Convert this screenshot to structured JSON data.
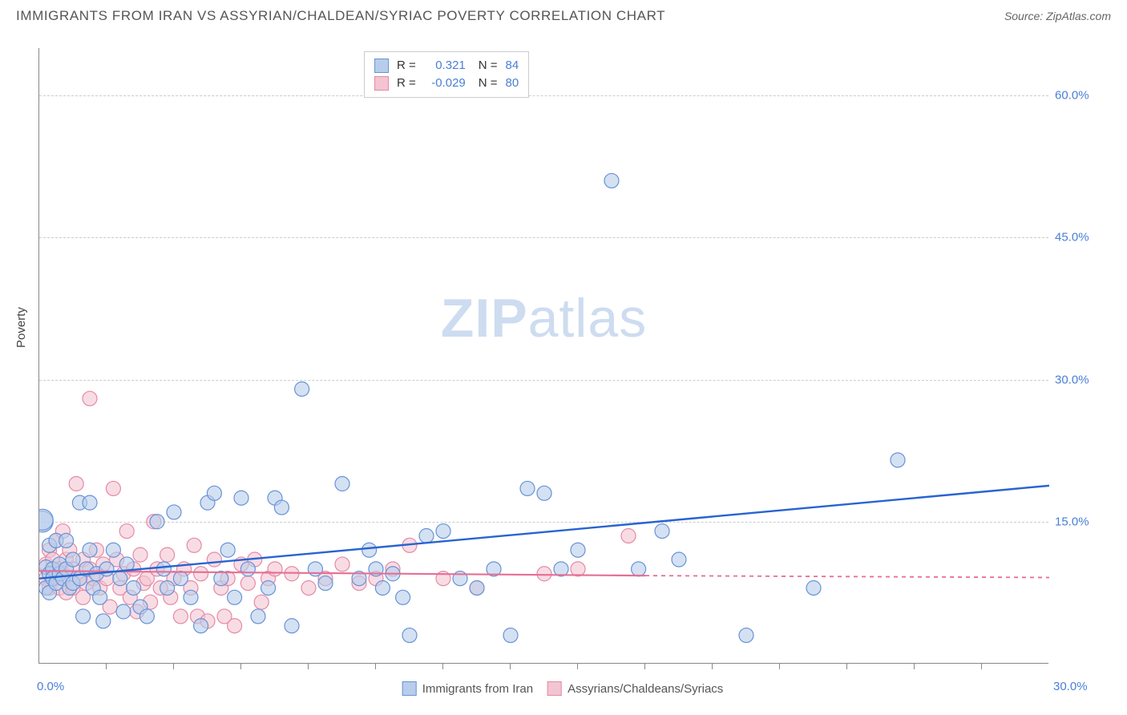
{
  "title": "IMMIGRANTS FROM IRAN VS ASSYRIAN/CHALDEAN/SYRIAC POVERTY CORRELATION CHART",
  "source": "Source: ZipAtlas.com",
  "watermark_zip": "ZIP",
  "watermark_atlas": "atlas",
  "ylabel": "Poverty",
  "chart": {
    "type": "scatter",
    "xlim": [
      0,
      30
    ],
    "ylim": [
      0,
      65
    ],
    "ytick_values": [
      15,
      30,
      45,
      60
    ],
    "ytick_labels": [
      "15.0%",
      "30.0%",
      "45.0%",
      "60.0%"
    ],
    "xtick_positions": [
      2,
      4,
      6,
      8,
      10,
      12,
      14,
      16,
      18,
      20,
      22,
      24,
      26,
      28
    ],
    "xlabel_start": "0.0%",
    "xlabel_end": "30.0%",
    "grid_color": "#cccccc",
    "background_color": "#ffffff",
    "marker_radius": 9,
    "marker_radius_large": 13,
    "series": [
      {
        "name": "Immigrants from Iran",
        "color_fill": "#b8cdeb",
        "color_stroke": "#6793d6",
        "fill_opacity": 0.6,
        "R": "0.321",
        "N": "84",
        "trend": {
          "x1": 0,
          "y1": 9.0,
          "x2": 30,
          "y2": 18.8,
          "color": "#2864d0",
          "dash_after_x": 30
        },
        "points": [
          [
            0.1,
            15.0
          ],
          [
            0.1,
            15.2
          ],
          [
            0.2,
            10.2
          ],
          [
            0.2,
            8.0
          ],
          [
            0.3,
            12.5
          ],
          [
            0.3,
            9.5
          ],
          [
            0.3,
            7.5
          ],
          [
            0.4,
            10.0
          ],
          [
            0.4,
            9.0
          ],
          [
            0.5,
            13.0
          ],
          [
            0.5,
            8.5
          ],
          [
            0.6,
            9.5
          ],
          [
            0.6,
            10.5
          ],
          [
            0.7,
            9.0
          ],
          [
            0.8,
            13.0
          ],
          [
            0.8,
            10.0
          ],
          [
            0.9,
            8.0
          ],
          [
            1.0,
            11.0
          ],
          [
            1.0,
            8.5
          ],
          [
            1.2,
            17.0
          ],
          [
            1.2,
            9.0
          ],
          [
            1.3,
            5.0
          ],
          [
            1.4,
            10.0
          ],
          [
            1.5,
            17.0
          ],
          [
            1.5,
            12.0
          ],
          [
            1.6,
            8.0
          ],
          [
            1.7,
            9.5
          ],
          [
            1.8,
            7.0
          ],
          [
            1.9,
            4.5
          ],
          [
            2.0,
            10.0
          ],
          [
            2.2,
            12.0
          ],
          [
            2.4,
            9.0
          ],
          [
            2.5,
            5.5
          ],
          [
            2.6,
            10.5
          ],
          [
            2.8,
            8.0
          ],
          [
            3.0,
            6.0
          ],
          [
            3.2,
            5.0
          ],
          [
            3.5,
            15.0
          ],
          [
            3.7,
            10.0
          ],
          [
            3.8,
            8.0
          ],
          [
            4.0,
            16.0
          ],
          [
            4.2,
            9.0
          ],
          [
            4.5,
            7.0
          ],
          [
            4.8,
            4.0
          ],
          [
            5.0,
            17.0
          ],
          [
            5.2,
            18.0
          ],
          [
            5.4,
            9.0
          ],
          [
            5.6,
            12.0
          ],
          [
            5.8,
            7.0
          ],
          [
            6.0,
            17.5
          ],
          [
            6.2,
            10.0
          ],
          [
            6.5,
            5.0
          ],
          [
            6.8,
            8.0
          ],
          [
            7.0,
            17.5
          ],
          [
            7.2,
            16.5
          ],
          [
            7.5,
            4.0
          ],
          [
            7.8,
            29.0
          ],
          [
            8.2,
            10.0
          ],
          [
            8.5,
            8.5
          ],
          [
            9.0,
            19.0
          ],
          [
            9.5,
            9.0
          ],
          [
            9.8,
            12.0
          ],
          [
            10.0,
            10.0
          ],
          [
            10.2,
            8.0
          ],
          [
            10.5,
            9.5
          ],
          [
            10.8,
            7.0
          ],
          [
            11.0,
            3.0
          ],
          [
            11.5,
            13.5
          ],
          [
            12.0,
            14.0
          ],
          [
            12.5,
            9.0
          ],
          [
            13.0,
            8.0
          ],
          [
            13.5,
            10.0
          ],
          [
            14.0,
            3.0
          ],
          [
            14.5,
            18.5
          ],
          [
            15.0,
            18.0
          ],
          [
            15.5,
            10.0
          ],
          [
            16.0,
            12.0
          ],
          [
            17.0,
            51.0
          ],
          [
            17.8,
            10.0
          ],
          [
            18.5,
            14.0
          ],
          [
            19.0,
            11.0
          ],
          [
            21.0,
            3.0
          ],
          [
            25.5,
            21.5
          ],
          [
            23.0,
            8.0
          ]
        ]
      },
      {
        "name": "Assyrians/Chaldeans/Syriacs",
        "color_fill": "#f3c4d2",
        "color_stroke": "#e58aa6",
        "fill_opacity": 0.6,
        "R": "-0.029",
        "N": "80",
        "trend": {
          "x1": 0,
          "y1": 9.8,
          "x2": 18,
          "y2": 9.3,
          "color": "#e56f95",
          "dash_after_x": 18,
          "dash_end_x": 30,
          "dash_end_y": 9.1
        },
        "points": [
          [
            0.2,
            9.0
          ],
          [
            0.2,
            10.5
          ],
          [
            0.3,
            12.0
          ],
          [
            0.3,
            8.0
          ],
          [
            0.4,
            9.5
          ],
          [
            0.4,
            11.0
          ],
          [
            0.5,
            9.0
          ],
          [
            0.5,
            13.0
          ],
          [
            0.6,
            8.0
          ],
          [
            0.6,
            10.0
          ],
          [
            0.7,
            9.5
          ],
          [
            0.7,
            14.0
          ],
          [
            0.8,
            11.0
          ],
          [
            0.8,
            7.5
          ],
          [
            0.9,
            9.0
          ],
          [
            0.9,
            12.0
          ],
          [
            1.0,
            10.0
          ],
          [
            1.0,
            8.0
          ],
          [
            1.1,
            19.0
          ],
          [
            1.2,
            9.0
          ],
          [
            1.3,
            11.0
          ],
          [
            1.3,
            7.0
          ],
          [
            1.4,
            8.5
          ],
          [
            1.5,
            10.0
          ],
          [
            1.5,
            28.0
          ],
          [
            1.6,
            9.0
          ],
          [
            1.7,
            12.0
          ],
          [
            1.8,
            8.0
          ],
          [
            1.9,
            10.5
          ],
          [
            2.0,
            9.0
          ],
          [
            2.1,
            6.0
          ],
          [
            2.2,
            18.5
          ],
          [
            2.3,
            11.0
          ],
          [
            2.4,
            8.0
          ],
          [
            2.5,
            9.5
          ],
          [
            2.6,
            14.0
          ],
          [
            2.7,
            7.0
          ],
          [
            2.8,
            10.0
          ],
          [
            2.9,
            5.5
          ],
          [
            3.0,
            11.5
          ],
          [
            3.1,
            8.5
          ],
          [
            3.2,
            9.0
          ],
          [
            3.3,
            6.5
          ],
          [
            3.4,
            15.0
          ],
          [
            3.5,
            10.0
          ],
          [
            3.6,
            8.0
          ],
          [
            3.8,
            11.5
          ],
          [
            3.9,
            7.0
          ],
          [
            4.0,
            9.0
          ],
          [
            4.2,
            5.0
          ],
          [
            4.3,
            10.0
          ],
          [
            4.5,
            8.0
          ],
          [
            4.6,
            12.5
          ],
          [
            4.7,
            5.0
          ],
          [
            4.8,
            9.5
          ],
          [
            5.0,
            4.5
          ],
          [
            5.2,
            11.0
          ],
          [
            5.4,
            8.0
          ],
          [
            5.5,
            5.0
          ],
          [
            5.6,
            9.0
          ],
          [
            5.8,
            4.0
          ],
          [
            6.0,
            10.5
          ],
          [
            6.2,
            8.5
          ],
          [
            6.4,
            11.0
          ],
          [
            6.6,
            6.5
          ],
          [
            6.8,
            9.0
          ],
          [
            7.0,
            10.0
          ],
          [
            7.5,
            9.5
          ],
          [
            8.0,
            8.0
          ],
          [
            8.5,
            9.0
          ],
          [
            9.0,
            10.5
          ],
          [
            9.5,
            8.5
          ],
          [
            10.0,
            9.0
          ],
          [
            10.5,
            10.0
          ],
          [
            11.0,
            12.5
          ],
          [
            12.0,
            9.0
          ],
          [
            13.0,
            8.0
          ],
          [
            15.0,
            9.5
          ],
          [
            16.0,
            10.0
          ],
          [
            17.5,
            13.5
          ]
        ]
      }
    ]
  },
  "legend_bottom": [
    {
      "label": "Immigrants from Iran",
      "fill": "#b8cdeb",
      "stroke": "#6793d6"
    },
    {
      "label": "Assyrians/Chaldeans/Syriacs",
      "fill": "#f3c4d2",
      "stroke": "#e58aa6"
    }
  ]
}
